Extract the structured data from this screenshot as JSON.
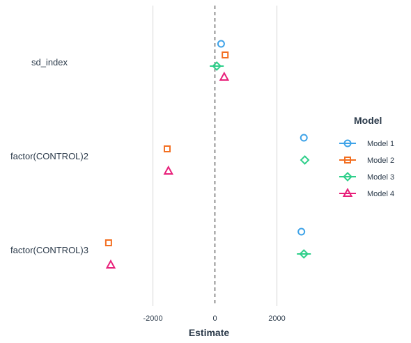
{
  "chart_data": {
    "type": "scatter",
    "title": "",
    "xlabel": "Estimate",
    "ylabel": "",
    "xlim": [
      -3600,
      5300
    ],
    "xticks": [
      -2000,
      0,
      2000
    ],
    "xtick_labels": [
      "-2000",
      "0",
      "2000"
    ],
    "grid": true,
    "zero_reference_line": true,
    "terms": [
      "sd_index",
      "factor(CONTROL)2",
      "factor(CONTROL)3"
    ],
    "legend": {
      "title": "Model",
      "position": "right",
      "entries": [
        "Model 1",
        "Model 2",
        "Model 3",
        "Model 4"
      ]
    },
    "series": [
      {
        "name": "Model 1",
        "marker": "circle",
        "color": "#3fa3e8",
        "points": [
          {
            "term": "sd_index",
            "estimate": 200
          },
          {
            "term": "factor(CONTROL)2",
            "estimate": 2870
          },
          {
            "term": "factor(CONTROL)3",
            "estimate": 2790
          }
        ]
      },
      {
        "name": "Model 2",
        "marker": "square",
        "color": "#f36f21",
        "points": [
          {
            "term": "sd_index",
            "estimate": 330
          },
          {
            "term": "factor(CONTROL)2",
            "estimate": -1540
          },
          {
            "term": "factor(CONTROL)3",
            "estimate": -3430
          }
        ]
      },
      {
        "name": "Model 3",
        "marker": "diamond",
        "color": "#2ecf8a",
        "points": [
          {
            "term": "sd_index",
            "estimate": 60
          },
          {
            "term": "factor(CONTROL)2",
            "estimate": 2900
          },
          {
            "term": "factor(CONTROL)3",
            "estimate": 2870
          }
        ]
      },
      {
        "name": "Model 4",
        "marker": "triangle",
        "color": "#e8207a",
        "points": [
          {
            "term": "sd_index",
            "estimate": 300
          },
          {
            "term": "factor(CONTROL)2",
            "estimate": -1500
          },
          {
            "term": "factor(CONTROL)3",
            "estimate": -3360
          }
        ]
      }
    ]
  }
}
